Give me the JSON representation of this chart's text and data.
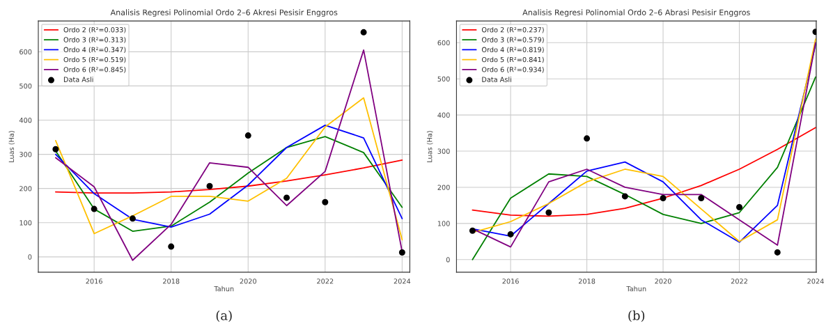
{
  "chart_data": [
    {
      "type": "line",
      "title": "Analisis Regresi Polinomial Ordo 2–6 Akresi Pesisir Enggros",
      "xlabel": "Tahun",
      "ylabel": "Luas (Ha)",
      "annotations": [
        "(a)"
      ],
      "x": [
        2015,
        2016,
        2017,
        2018,
        2019,
        2020,
        2021,
        2022,
        2023,
        2024
      ],
      "xlim": [
        2014.55,
        2024.2
      ],
      "xticks": [
        2016,
        2018,
        2020,
        2022,
        2024
      ],
      "ylim": [
        -45,
        690
      ],
      "yticks": [
        0,
        100,
        200,
        300,
        400,
        500,
        600
      ],
      "grid": true,
      "legend": "top left",
      "series": [
        {
          "name": "Ordo 2 (R²=0.033)",
          "color": "#ff0000",
          "marker": "none",
          "values": [
            190,
            187,
            187,
            190,
            197,
            207,
            222,
            240,
            260,
            283
          ]
        },
        {
          "name": "Ordo 3 (R²=0.313)",
          "color": "#008000",
          "marker": "none",
          "values": [
            310,
            140,
            75,
            90,
            160,
            245,
            320,
            352,
            305,
            145
          ]
        },
        {
          "name": "Ordo 4 (R²=0.347)",
          "color": "#0000ff",
          "marker": "none",
          "values": [
            300,
            185,
            110,
            87,
            125,
            210,
            320,
            385,
            348,
            112
          ]
        },
        {
          "name": "Ordo 5 (R²=0.519)",
          "color": "#ffc000",
          "marker": "none",
          "values": [
            340,
            68,
            120,
            177,
            177,
            163,
            230,
            380,
            465,
            50
          ]
        },
        {
          "name": "Ordo 6 (R²=0.845)",
          "color": "#800080",
          "marker": "none",
          "values": [
            290,
            205,
            -10,
            95,
            275,
            262,
            150,
            250,
            605,
            15
          ]
        },
        {
          "name": "Data Asli",
          "type": "scatter",
          "color": "#000000",
          "marker": "circle",
          "values": [
            315,
            140,
            112,
            30,
            207,
            355,
            173,
            160,
            657,
            13
          ]
        }
      ]
    },
    {
      "type": "line",
      "title": "Analisis Regresi Polinomial Ordo 2–6 Abrasi Pesisir Enggros",
      "xlabel": "Tahun",
      "ylabel": "Luas (Ha)",
      "annotations": [
        "(b)"
      ],
      "x": [
        2015,
        2016,
        2017,
        2018,
        2019,
        2020,
        2021,
        2022,
        2023,
        2024
      ],
      "xlim": [
        2014.58,
        2024.02
      ],
      "xticks": [
        2016,
        2018,
        2020,
        2022,
        2024
      ],
      "ylim": [
        -35,
        660
      ],
      "yticks": [
        0,
        100,
        200,
        300,
        400,
        500,
        600
      ],
      "grid": true,
      "legend": "top left",
      "series": [
        {
          "name": "Ordo 2 (R²=0.237)",
          "color": "#ff0000",
          "marker": "none",
          "values": [
            137,
            123,
            120,
            125,
            142,
            170,
            205,
            250,
            305,
            365
          ]
        },
        {
          "name": "Ordo 3 (R²=0.579)",
          "color": "#008000",
          "marker": "none",
          "values": [
            0,
            170,
            237,
            230,
            180,
            125,
            100,
            130,
            255,
            505
          ]
        },
        {
          "name": "Ordo 4 (R²=0.819)",
          "color": "#0000ff",
          "marker": "none",
          "values": [
            85,
            65,
            155,
            245,
            270,
            215,
            110,
            48,
            150,
            595
          ]
        },
        {
          "name": "Ordo 5 (R²=0.841)",
          "color": "#ffc000",
          "marker": "none",
          "values": [
            75,
            105,
            155,
            215,
            250,
            230,
            140,
            50,
            110,
            610
          ]
        },
        {
          "name": "Ordo 6 (R²=0.934)",
          "color": "#800080",
          "marker": "none",
          "values": [
            85,
            35,
            215,
            250,
            200,
            180,
            180,
            110,
            40,
            600
          ]
        },
        {
          "name": "Data Asli",
          "type": "scatter",
          "color": "#000000",
          "marker": "circle",
          "values": [
            80,
            70,
            130,
            335,
            175,
            170,
            170,
            145,
            20,
            630
          ]
        }
      ]
    }
  ]
}
